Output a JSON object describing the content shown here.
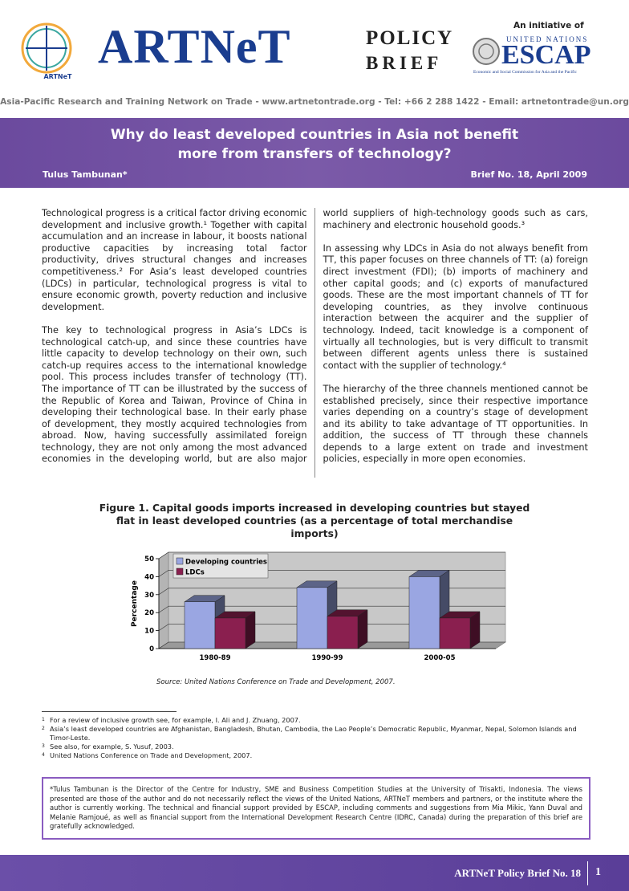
{
  "header": {
    "logo_label": "ARTNeT",
    "title": "ARTNeT",
    "policy": "POLICY",
    "brief": "BRIEF",
    "initiative": "An initiative of",
    "un": "UNITED NATIONS",
    "escap": "ESCAP",
    "escap_full": "Economic and Social Commission for Asia and the Pacific",
    "contact": "Asia-Pacific Research and Training Network on Trade - www.artnetontrade.org - Tel: +66 2 288 1422 - Email: artnetontrade@un.org"
  },
  "banner": {
    "title": "Why do least developed countries in Asia not benefit more from transfers of technology?",
    "author": "Tulus Tambunan*",
    "issue": "Brief No. 18, April 2009"
  },
  "body": {
    "paragraphs": [
      "Technological progress is a critical factor driving economic development and inclusive growth.¹ Together with capital accumulation and an increase in labour, it boosts national productive capacities by increasing total factor productivity, drives structural changes and increases competitiveness.² For Asia’s least developed countries (LDCs) in particular, technological progress is vital to ensure economic growth, poverty reduction and inclusive development.",
      "The key to technological progress in Asia’s LDCs is technological catch-up, and since these countries have little capacity to develop technology on their own, such catch-up requires access to the international knowledge pool. This process includes transfer of technology (TT). The importance of TT can be illustrated by the success of the Republic of Korea and Taiwan, Province of China in developing their technological base. In their early phase of development, they mostly acquired technologies from abroad. Now, having successfully assimilated foreign technology, they are not only among the most advanced economies in the developing world, but are also major world suppliers of high-technology goods such as cars, machinery and electronic household goods.³",
      "In assessing why LDCs in Asia do not always benefit from TT, this paper focuses on three channels of TT: (a) foreign direct investment (FDI); (b) imports of machinery and other capital goods; and (c) exports of manufactured goods. These are the most important channels of TT for developing countries, as they involve continuous interaction between the acquirer and the supplier of technology. Indeed, tacit knowledge is a component of virtually all technologies, but is very difficult to transmit between different agents unless there is sustained contact with the supplier of technology.⁴",
      "The hierarchy of the three channels mentioned cannot be established precisely, since their respective importance varies depending on a country’s stage of development and its ability to take advantage of TT opportunities. In addition, the success of TT through these channels depends to a large extent on trade and investment policies, especially in more open economies."
    ]
  },
  "chart_data": {
    "type": "bar",
    "title": "Figure 1. Capital goods imports increased in developing countries but stayed flat in least developed countries (as a percentage of total merchandise imports)",
    "categories": [
      "1980-89",
      "1990-99",
      "2000-05"
    ],
    "series": [
      {
        "name": "Developing countries",
        "color": "#9aa6e2",
        "values": [
          26,
          34,
          40
        ]
      },
      {
        "name": "LDCs",
        "color": "#8a1f4f",
        "values": [
          17,
          18,
          17
        ]
      }
    ],
    "ylabel": "Percentage",
    "ylim": [
      0,
      50
    ],
    "yticks": [
      0,
      10,
      20,
      30,
      40,
      50
    ],
    "grid": true,
    "legend": "top-left",
    "source": "Source: United Nations Conference on Trade and Development, 2007."
  },
  "footnotes": [
    {
      "number": "1",
      "text": "For a review of inclusive growth see, for example, I. Ali and J. Zhuang, 2007."
    },
    {
      "number": "2",
      "text": "Asia’s least developed countries are Afghanistan, Bangladesh, Bhutan, Cambodia, the Lao People’s Democratic Republic, Myanmar, Nepal, Solomon Islands and Timor-Leste."
    },
    {
      "number": "3",
      "text": "See also, for example, S. Yusuf, 2003."
    },
    {
      "number": "4",
      "text": "United Nations Conference on Trade and Development, 2007."
    }
  ],
  "author_note": "*Tulus Tambunan is the Director of the Centre for Industry, SME and Business Competition Studies at the University of Trisakti, Indonesia. The views presented are those of the author and do not necessarily reflect the views of the United Nations, ARTNeT members and partners, or the institute where the author is currently working. The technical and financial support provided by ESCAP, including comments and suggestions from Mia Mikic, Yann Duval and Melanie Ramjoué, as well as financial support from the International Development Research Centre (IDRC, Canada) during the preparation of this brief are gratefully acknowledged.",
  "footer": {
    "label": "ARTNeT Policy Brief No. 18",
    "page": "1"
  }
}
